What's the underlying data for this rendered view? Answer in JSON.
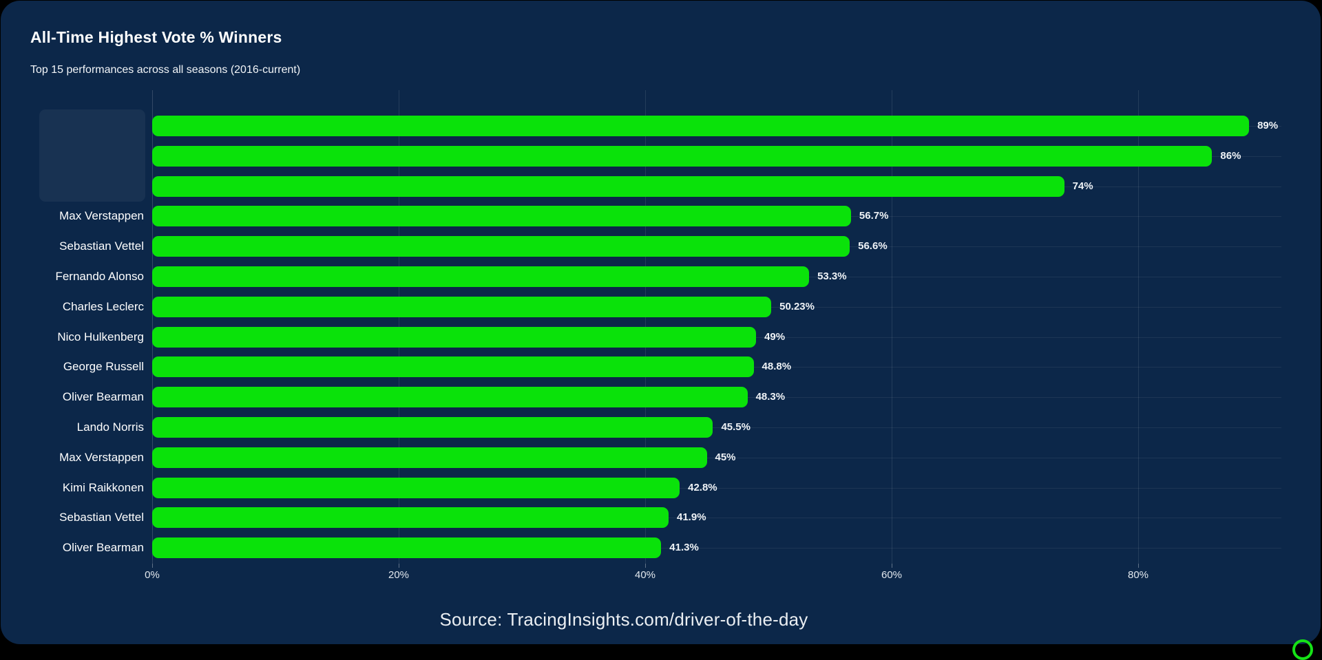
{
  "header": {
    "title": "All-Time Highest Vote % Winners",
    "subtitle": "Top 15 performances across all seasons (2016-current)"
  },
  "footer": {
    "source": "Source: TracingInsights.com/driver-of-the-day"
  },
  "colors": {
    "page_background": "#000000",
    "card_background": "#0c2749",
    "bar": "#0ae20a",
    "text": "#ffffff",
    "tick_text": "#e2e8ee",
    "grid": "rgba(255,255,255,0.10)",
    "logo_ring": "#16e216"
  },
  "icons": {
    "logo_ring": "partial-green-circle-bottom-right"
  },
  "chart_data": {
    "type": "bar",
    "orientation": "horizontal",
    "title": "All-Time Highest Vote % Winners",
    "subtitle": "Top 15 performances across all seasons (2016-current)",
    "xlabel": "",
    "ylabel": "",
    "categories": [
      "",
      "",
      "",
      "Max Verstappen",
      "Sebastian Vettel",
      "Fernando Alonso",
      "Charles Leclerc",
      "Nico Hulkenberg",
      "George Russell",
      "Oliver Bearman",
      "Lando Norris",
      "Max Verstappen",
      "Kimi Raikkonen",
      "Sebastian Vettel",
      "Oliver Bearman"
    ],
    "values": [
      89,
      86,
      74,
      56.7,
      56.6,
      53.3,
      50.23,
      49,
      48.8,
      48.3,
      45.5,
      45,
      42.8,
      41.9,
      41.3
    ],
    "value_labels": [
      "89%",
      "86%",
      "74%",
      "56.7%",
      "56.6%",
      "53.3%",
      "50.23%",
      "49%",
      "48.8%",
      "48.3%",
      "45.5%",
      "45%",
      "42.8%",
      "41.9%",
      "41.3%"
    ],
    "masked_rows": [
      0,
      1,
      2
    ],
    "xticks": [
      0,
      20,
      40,
      60,
      80
    ],
    "xtick_labels": [
      "0%",
      "20%",
      "40%",
      "60%",
      "80%"
    ],
    "xlim": [
      0,
      91.6
    ],
    "grid": true,
    "legend": false
  }
}
